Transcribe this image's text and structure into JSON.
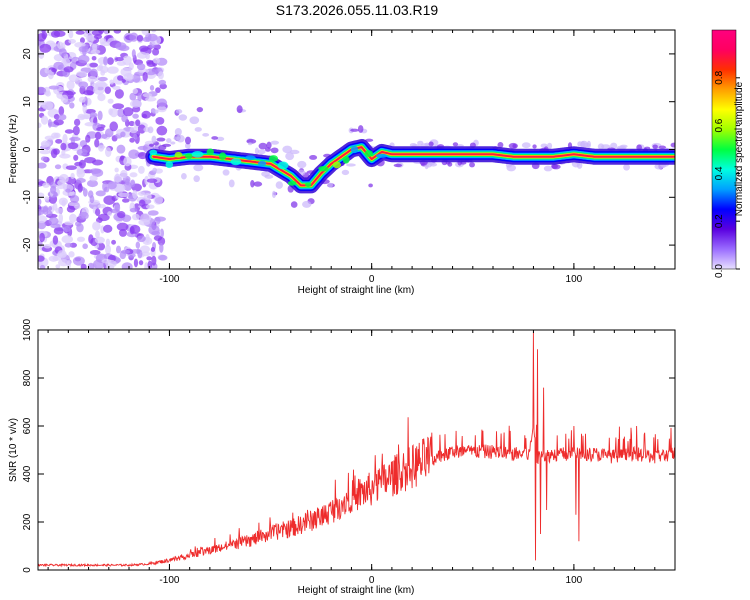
{
  "title": "S173.2026.055.11.03.R19",
  "colors": {
    "snr_line": "#ee2c2c",
    "axis": "#000000",
    "background": "#ffffff"
  },
  "chart_data": [
    {
      "type": "heatmap",
      "name": "spectrogram",
      "xlabel": "Height of straight line (km)",
      "ylabel": "Frequency (Hz)",
      "xlim": [
        -165,
        150
      ],
      "ylim": [
        -25,
        25
      ],
      "x_ticks": [
        -100,
        0,
        100
      ],
      "y_ticks": [
        -20,
        -10,
        0,
        10,
        20
      ],
      "colorbar": {
        "label": "Normalized spectral amplitude",
        "range": [
          0,
          1
        ],
        "ticks": [
          "0.0",
          "0.2",
          "0.4",
          "0.6",
          "0.8"
        ],
        "tick_values": [
          0,
          0.2,
          0.4,
          0.6,
          0.8
        ],
        "colors": [
          "#e8e0ff",
          "#9a6cff",
          "#5a00e0",
          "#0000ff",
          "#00a0ff",
          "#00ffe0",
          "#00ff40",
          "#a0ff00",
          "#ffff00",
          "#ffa000",
          "#ff3000",
          "#ff0060",
          "#ff007f"
        ]
      },
      "ridge": {
        "x": [
          -108,
          -100,
          -90,
          -80,
          -70,
          -60,
          -50,
          -40,
          -35,
          -30,
          -25,
          -20,
          -15,
          -10,
          -5,
          0,
          5,
          10,
          20,
          40,
          60,
          70,
          80,
          90,
          100,
          110,
          130,
          150
        ],
        "y": [
          -1.5,
          -2,
          -1.5,
          -1.5,
          -2,
          -2.5,
          -3,
          -5.5,
          -7.5,
          -7.5,
          -5,
          -3,
          -1.5,
          0,
          0.5,
          -2,
          -0.5,
          -1,
          -1,
          -1,
          -1,
          -1.5,
          -1.5,
          -1.5,
          -1,
          -1.5,
          -1.5,
          -1.5
        ]
      }
    },
    {
      "type": "line",
      "name": "snr",
      "xlabel": "Height of straight line (km)",
      "ylabel": "SNR (10 * v/v)",
      "xlim": [
        -165,
        150
      ],
      "ylim": [
        0,
        1000
      ],
      "x_ticks": [
        -100,
        0,
        100
      ],
      "y_ticks": [
        0,
        200,
        400,
        600,
        800,
        1000
      ],
      "envelope": {
        "x": [
          -165,
          -120,
          -110,
          -100,
          -90,
          -80,
          -70,
          -60,
          -50,
          -40,
          -30,
          -20,
          -10,
          0,
          10,
          20,
          30,
          40,
          60,
          70,
          78,
          80,
          82,
          84,
          86,
          90,
          100,
          110,
          120,
          130,
          140,
          150
        ],
        "y": [
          20,
          20,
          25,
          40,
          60,
          80,
          100,
          120,
          150,
          170,
          200,
          240,
          300,
          330,
          380,
          420,
          460,
          490,
          490,
          480,
          480,
          600,
          450,
          500,
          470,
          480,
          480,
          480,
          470,
          480,
          470,
          480
        ]
      },
      "spikes": [
        {
          "x": 80,
          "y": 990
        },
        {
          "x": 81,
          "y": 40
        },
        {
          "x": 82,
          "y": 920
        },
        {
          "x": 83.5,
          "y": 150
        },
        {
          "x": 85,
          "y": 760
        },
        {
          "x": 86.5,
          "y": 250
        },
        {
          "x": 100,
          "y": 600
        },
        {
          "x": 101,
          "y": 230
        },
        {
          "x": 101.8,
          "y": 510
        },
        {
          "x": 102.5,
          "y": 120
        }
      ]
    }
  ]
}
